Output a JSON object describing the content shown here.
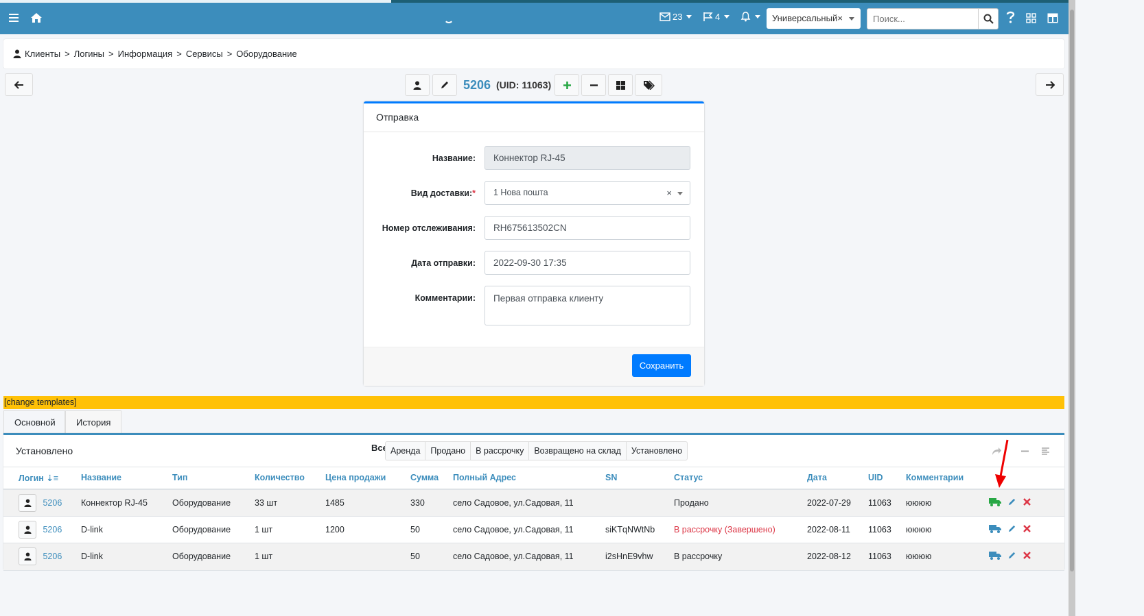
{
  "nav": {
    "mail_count": "23",
    "flag_count": "4",
    "theme_select": "Универсальный",
    "search_placeholder": "Поиск..."
  },
  "breadcrumb": [
    "Клиенты",
    "Логины",
    "Информация",
    "Сервисы",
    "Оборудование"
  ],
  "toolbar": {
    "login": "5206",
    "uid": "(UID: 11063)"
  },
  "form": {
    "title": "Отправка",
    "name_label": "Название:",
    "name_value": "Коннектор RJ-45",
    "delivery_label": "Вид доставки:",
    "delivery_value": "1 Нова пошта",
    "tracking_label": "Номер отслеживания:",
    "tracking_value": "RH675613502CN",
    "date_label": "Дата отправки:",
    "date_value": "2022-09-30 17:35",
    "comment_label": "Комментарии:",
    "comment_value": "Первая отправка клиенту",
    "save_label": "Сохранить"
  },
  "change_templates": "[change templates]",
  "tabs": [
    "Основной",
    "История"
  ],
  "panel": {
    "title": "Установлено",
    "all_label": "Все",
    "filters": [
      "Аренда",
      "Продано",
      "В рассрочку",
      "Возвращено на склад",
      "Установлено"
    ]
  },
  "table": {
    "columns": [
      "Логин",
      "Название",
      "Тип",
      "Количество",
      "Цена продажи",
      "Сумма",
      "Полный Адрес",
      "SN",
      "Статус",
      "Дата",
      "UID",
      "Комментарии"
    ],
    "rows": [
      {
        "login": "5206",
        "name": "Коннектор RJ-45",
        "type": "Оборудование",
        "qty": "33 шт",
        "price": "1485",
        "sum": "330",
        "address": "село Садовое, ул.Садовая, 11",
        "sn": "",
        "status": "Продано",
        "status_color": "#212529",
        "date": "2022-07-29",
        "uid": "11063",
        "comment": "юююю",
        "truck_color": "#28a745"
      },
      {
        "login": "5206",
        "name": "D-link",
        "type": "Оборудование",
        "qty": "1 шт",
        "price": "1200",
        "sum": "50",
        "address": "село Садовое, ул.Садовая, 11",
        "sn": "siKTqNWtNb",
        "status": "В рассрочку (Завершено)",
        "status_color": "#dc3545",
        "date": "2022-08-11",
        "uid": "11063",
        "comment": "юююю",
        "truck_color": "#3c8dbc"
      },
      {
        "login": "5206",
        "name": "D-link",
        "type": "Оборудование",
        "qty": "1 шт",
        "price": "",
        "sum": "50",
        "address": "село Садовое, ул.Садовая, 11",
        "sn": "i2sHnE9vhw",
        "status": "В рассрочку",
        "status_color": "#212529",
        "date": "2022-08-12",
        "uid": "11063",
        "comment": "юююю",
        "truck_color": "#3c8dbc"
      }
    ]
  }
}
